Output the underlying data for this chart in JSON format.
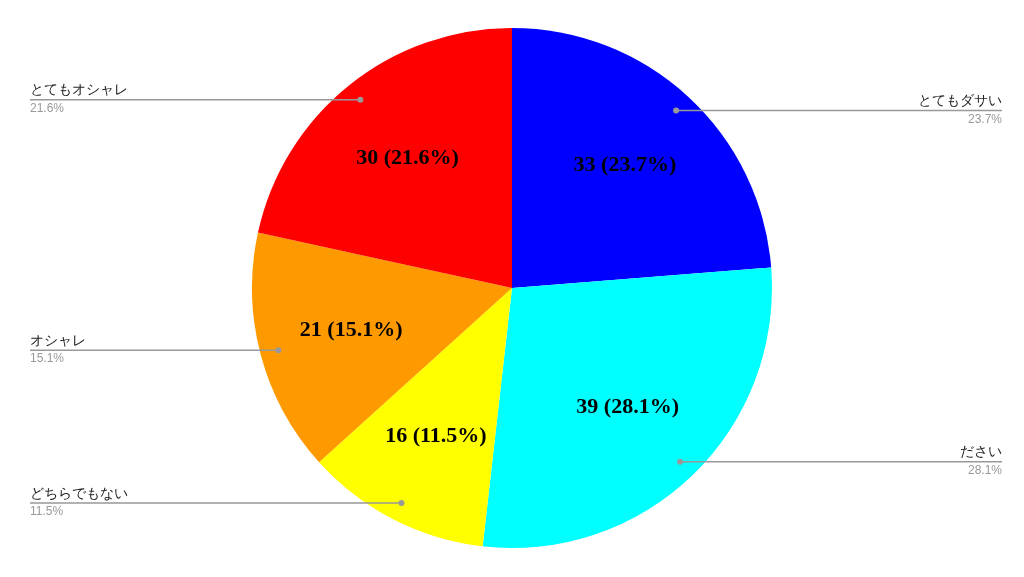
{
  "chart_data": {
    "type": "pie",
    "categories": [
      "とてもダサい",
      "ださい",
      "どちらでもない",
      "オシャレ",
      "とてもオシャレ"
    ],
    "values": [
      33,
      39,
      16,
      21,
      30
    ],
    "colors": [
      "#0000ff",
      "#00ffff",
      "#ffff00",
      "#ff9900",
      "#ff0000"
    ],
    "value_labels": [
      "33 (23.7%)",
      "39 (28.1%)",
      "16 (11.5%)",
      "21 (15.1%)",
      "30 (21.6%)"
    ],
    "annotations": [
      "23.7%",
      "28.1%",
      "11.5%",
      "15.1%",
      "21.6%"
    ],
    "legend": false
  }
}
